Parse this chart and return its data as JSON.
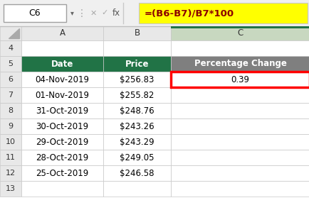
{
  "formula_bar_cell": "C6",
  "formula_bar_formula": "=(B6-B7)/B7*100",
  "col_headers": [
    "A",
    "B",
    "C"
  ],
  "row_numbers": [
    4,
    5,
    6,
    7,
    8,
    9,
    10,
    11,
    12,
    13
  ],
  "headers": [
    "Date",
    "Price",
    "Percentage Change"
  ],
  "data_rows": [
    [
      "04-Nov-2019",
      "$256.83",
      "0.39"
    ],
    [
      "01-Nov-2019",
      "$255.82",
      ""
    ],
    [
      "31-Oct-2019",
      "$248.76",
      ""
    ],
    [
      "30-Oct-2019",
      "$243.26",
      ""
    ],
    [
      "29-Oct-2019",
      "$243.29",
      ""
    ],
    [
      "28-Oct-2019",
      "$249.05",
      ""
    ],
    [
      "25-Oct-2019",
      "$246.58",
      ""
    ]
  ],
  "header_bg_green": "#217346",
  "header_bg_grey": "#7F7F7F",
  "header_text_color": "#FFFFFF",
  "cell_text_color": "#000000",
  "formula_bg": "#FFFF00",
  "formula_text_color": "#8B0000",
  "selected_cell_border": "#FF0000",
  "grid_color": "#C8C8C8",
  "col_header_bg": "#E8E8E8",
  "row_num_bg": "#E8E8E8",
  "toolbar_bg": "#F0F0F0",
  "sheet_bg": "#FFFFFF",
  "selected_col_header_bg": "#C8D8C0",
  "name_box_border": "#A0A0A0",
  "icon_color": "#AAAAAA",
  "formula_icon_color": "#555555"
}
